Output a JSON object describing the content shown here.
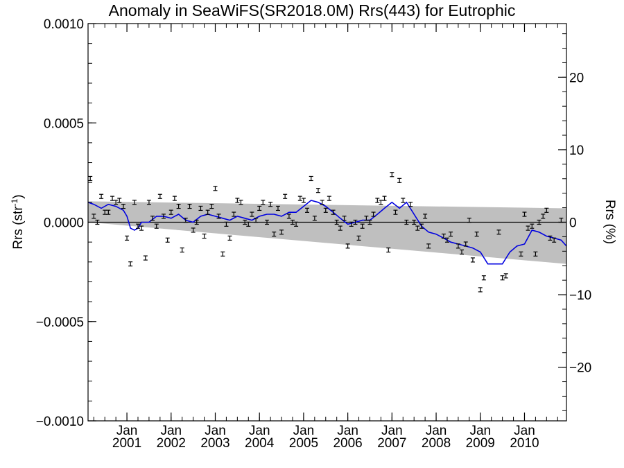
{
  "chart_data": {
    "type": "scatter",
    "title": "Anomaly in SeaWiFS(SR2018.0M) Rrs(443) for Eutrophic",
    "ylabel": "Rrs (str",
    "ylabel_sup": "-1",
    "ylabel_close": ")",
    "y2label": "Rrs (%)",
    "ylim": [
      -0.001,
      0.001
    ],
    "y2lim": [
      -27.4,
      27.4
    ],
    "xlim": [
      2000.12,
      2010.95
    ],
    "y_ticks": [
      {
        "v": -0.001,
        "label": "−0.0010"
      },
      {
        "v": -0.0005,
        "label": "−0.0005"
      },
      {
        "v": 0.0,
        "label": "0.0000"
      },
      {
        "v": 0.0005,
        "label": "0.0005"
      },
      {
        "v": 0.001,
        "label": "0.0010"
      }
    ],
    "y2_ticks": [
      {
        "v": -20,
        "label": "−20"
      },
      {
        "v": -10,
        "label": "−10"
      },
      {
        "v": 0,
        "label": "0"
      },
      {
        "v": 10,
        "label": "10"
      },
      {
        "v": 20,
        "label": "20"
      }
    ],
    "x_ticks": [
      {
        "v": 2001.0,
        "month": "Jan",
        "year": "2001"
      },
      {
        "v": 2002.0,
        "month": "Jan",
        "year": "2002"
      },
      {
        "v": 2003.0,
        "month": "Jan",
        "year": "2003"
      },
      {
        "v": 2004.0,
        "month": "Jan",
        "year": "2004"
      },
      {
        "v": 2005.0,
        "month": "Jan",
        "year": "2005"
      },
      {
        "v": 2006.0,
        "month": "Jan",
        "year": "2006"
      },
      {
        "v": 2007.0,
        "month": "Jan",
        "year": "2007"
      },
      {
        "v": 2008.0,
        "month": "Jan",
        "year": "2008"
      },
      {
        "v": 2009.0,
        "month": "Jan",
        "year": "2009"
      },
      {
        "v": 2010.0,
        "month": "Jan",
        "year": "2010"
      }
    ],
    "band": {
      "x": [
        2000.12,
        2010.95
      ],
      "upper": [
        0.000105,
        7e-05
      ],
      "lower": [
        0.0,
        -0.00021
      ]
    },
    "zero_line": 0.0,
    "points": [
      {
        "x": 2000.17,
        "y": 0.00022
      },
      {
        "x": 2000.25,
        "y": 3e-05
      },
      {
        "x": 2000.33,
        "y": 0.0
      },
      {
        "x": 2000.42,
        "y": 0.00013
      },
      {
        "x": 2000.5,
        "y": 5e-05
      },
      {
        "x": 2000.58,
        "y": 5e-05
      },
      {
        "x": 2000.67,
        "y": 0.00012
      },
      {
        "x": 2000.75,
        "y": 0.0001
      },
      {
        "x": 2000.83,
        "y": 0.00011
      },
      {
        "x": 2000.92,
        "y": 8e-05
      },
      {
        "x": 2001.0,
        "y": -8e-05
      },
      {
        "x": 2001.08,
        "y": -0.00021
      },
      {
        "x": 2001.17,
        "y": 0.0001
      },
      {
        "x": 2001.25,
        "y": -2e-05
      },
      {
        "x": 2001.33,
        "y": -3e-05
      },
      {
        "x": 2001.42,
        "y": -0.00018
      },
      {
        "x": 2001.5,
        "y": 0.0001
      },
      {
        "x": 2001.58,
        "y": 2e-05
      },
      {
        "x": 2001.67,
        "y": -2e-05
      },
      {
        "x": 2001.75,
        "y": 0.00013
      },
      {
        "x": 2001.83,
        "y": 3e-05
      },
      {
        "x": 2001.92,
        "y": -9e-05
      },
      {
        "x": 2002.0,
        "y": 5e-05
      },
      {
        "x": 2002.08,
        "y": 0.00012
      },
      {
        "x": 2002.17,
        "y": 8e-05
      },
      {
        "x": 2002.25,
        "y": -0.00014
      },
      {
        "x": 2002.33,
        "y": 1e-05
      },
      {
        "x": 2002.42,
        "y": 8e-05
      },
      {
        "x": 2002.5,
        "y": -4e-05
      },
      {
        "x": 2002.58,
        "y": 0.0
      },
      {
        "x": 2002.67,
        "y": 7e-05
      },
      {
        "x": 2002.75,
        "y": -7e-05
      },
      {
        "x": 2002.83,
        "y": 5e-05
      },
      {
        "x": 2002.92,
        "y": 8e-05
      },
      {
        "x": 2003.0,
        "y": 0.00017
      },
      {
        "x": 2003.08,
        "y": 3e-05
      },
      {
        "x": 2003.17,
        "y": -0.00016
      },
      {
        "x": 2003.25,
        "y": -1e-05
      },
      {
        "x": 2003.33,
        "y": -8e-05
      },
      {
        "x": 2003.42,
        "y": 4e-05
      },
      {
        "x": 2003.5,
        "y": 0.00011
      },
      {
        "x": 2003.58,
        "y": 0.0001
      },
      {
        "x": 2003.67,
        "y": 0.0
      },
      {
        "x": 2003.75,
        "y": -1e-05
      },
      {
        "x": 2003.83,
        "y": 4e-05
      },
      {
        "x": 2003.92,
        "y": 1e-05
      },
      {
        "x": 2004.0,
        "y": 7e-05
      },
      {
        "x": 2004.08,
        "y": 0.0001
      },
      {
        "x": 2004.17,
        "y": 0.0
      },
      {
        "x": 2004.25,
        "y": 9e-05
      },
      {
        "x": 2004.33,
        "y": -6e-05
      },
      {
        "x": 2004.42,
        "y": 7e-05
      },
      {
        "x": 2004.5,
        "y": -5e-05
      },
      {
        "x": 2004.58,
        "y": 0.00013
      },
      {
        "x": 2004.67,
        "y": 3e-05
      },
      {
        "x": 2004.75,
        "y": 0.0
      },
      {
        "x": 2004.83,
        "y": -1e-05
      },
      {
        "x": 2004.92,
        "y": 0.00012
      },
      {
        "x": 2005.0,
        "y": 0.00011
      },
      {
        "x": 2005.08,
        "y": 6e-05
      },
      {
        "x": 2005.17,
        "y": 0.00022
      },
      {
        "x": 2005.25,
        "y": 2e-05
      },
      {
        "x": 2005.33,
        "y": 0.00016
      },
      {
        "x": 2005.42,
        "y": 0.0001
      },
      {
        "x": 2005.5,
        "y": 6e-05
      },
      {
        "x": 2005.58,
        "y": 0.00012
      },
      {
        "x": 2005.67,
        "y": 5e-05
      },
      {
        "x": 2005.75,
        "y": 0.0
      },
      {
        "x": 2005.83,
        "y": -3e-05
      },
      {
        "x": 2005.92,
        "y": 2e-05
      },
      {
        "x": 2006.0,
        "y": -0.00012
      },
      {
        "x": 2006.08,
        "y": -1e-05
      },
      {
        "x": 2006.17,
        "y": 0.0
      },
      {
        "x": 2006.25,
        "y": -8e-05
      },
      {
        "x": 2006.33,
        "y": -2e-05
      },
      {
        "x": 2006.42,
        "y": 2e-05
      },
      {
        "x": 2006.5,
        "y": 0.0
      },
      {
        "x": 2006.58,
        "y": 4e-05
      },
      {
        "x": 2006.67,
        "y": 0.00011
      },
      {
        "x": 2006.75,
        "y": 0.0001
      },
      {
        "x": 2006.83,
        "y": 0.00012
      },
      {
        "x": 2006.92,
        "y": -0.00014
      },
      {
        "x": 2007.0,
        "y": 0.00024
      },
      {
        "x": 2007.08,
        "y": 5e-05
      },
      {
        "x": 2007.17,
        "y": 0.00021
      },
      {
        "x": 2007.25,
        "y": 0.00011
      },
      {
        "x": 2007.33,
        "y": 0.0
      },
      {
        "x": 2007.42,
        "y": 9e-05
      },
      {
        "x": 2007.5,
        "y": 0.0
      },
      {
        "x": 2007.58,
        "y": -3e-05
      },
      {
        "x": 2007.67,
        "y": -2e-05
      },
      {
        "x": 2007.75,
        "y": 3e-05
      },
      {
        "x": 2007.83,
        "y": -0.00012
      },
      {
        "x": 2008.17,
        "y": -7e-05
      },
      {
        "x": 2008.25,
        "y": -9e-05
      },
      {
        "x": 2008.33,
        "y": -6e-05
      },
      {
        "x": 2008.5,
        "y": -0.00012
      },
      {
        "x": 2008.58,
        "y": -0.00015
      },
      {
        "x": 2008.67,
        "y": -0.00011
      },
      {
        "x": 2008.75,
        "y": 1e-05
      },
      {
        "x": 2008.83,
        "y": -0.00019
      },
      {
        "x": 2008.92,
        "y": -6e-05
      },
      {
        "x": 2009.0,
        "y": -0.00034
      },
      {
        "x": 2009.08,
        "y": -0.00028
      },
      {
        "x": 2009.42,
        "y": -5e-05
      },
      {
        "x": 2009.5,
        "y": -0.00028
      },
      {
        "x": 2009.58,
        "y": -0.00027
      },
      {
        "x": 2009.92,
        "y": -0.00016
      },
      {
        "x": 2010.0,
        "y": 4e-05
      },
      {
        "x": 2010.08,
        "y": -3e-05
      },
      {
        "x": 2010.17,
        "y": -2e-05
      },
      {
        "x": 2010.25,
        "y": -0.00016
      },
      {
        "x": 2010.33,
        "y": 0.0
      },
      {
        "x": 2010.42,
        "y": 3e-05
      },
      {
        "x": 2010.5,
        "y": 6e-05
      },
      {
        "x": 2010.58,
        "y": -8e-05
      },
      {
        "x": 2010.67,
        "y": -9e-05
      },
      {
        "x": 2010.83,
        "y": 1e-05
      }
    ],
    "running_mean": {
      "x": [
        2000.12,
        2000.25,
        2000.42,
        2000.58,
        2000.75,
        2000.92,
        2001.0,
        2001.08,
        2001.17,
        2001.25,
        2001.33,
        2001.5,
        2001.67,
        2001.83,
        2002.0,
        2002.17,
        2002.33,
        2002.5,
        2002.67,
        2002.83,
        2003.0,
        2003.17,
        2003.33,
        2003.5,
        2003.67,
        2003.83,
        2004.0,
        2004.17,
        2004.33,
        2004.5,
        2004.67,
        2004.83,
        2005.0,
        2005.17,
        2005.33,
        2005.5,
        2005.67,
        2005.83,
        2006.0,
        2006.17,
        2006.33,
        2006.5,
        2006.67,
        2006.83,
        2007.0,
        2007.17,
        2007.33,
        2007.5,
        2007.67,
        2007.83,
        2008.0,
        2008.17,
        2008.33,
        2008.5,
        2008.67,
        2008.83,
        2009.0,
        2009.17,
        2009.33,
        2009.5,
        2009.67,
        2009.83,
        2010.0,
        2010.17,
        2010.33,
        2010.5,
        2010.67,
        2010.83,
        2010.95
      ],
      "y": [
        0.0001,
        9e-05,
        7e-05,
        9e-05,
        8e-05,
        6e-05,
        3e-05,
        -3e-05,
        -4e-05,
        -3e-05,
        0.0,
        0.0,
        3e-05,
        3e-05,
        2e-05,
        4e-05,
        1e-05,
        0.0,
        3e-05,
        4e-05,
        3e-05,
        2e-05,
        1e-05,
        3e-05,
        2e-05,
        1e-05,
        3e-05,
        4e-05,
        4e-05,
        3e-05,
        5e-05,
        5e-05,
        8e-05,
        0.00011,
        0.0001,
        8e-05,
        5e-05,
        2e-05,
        -1e-05,
        0.0,
        1e-05,
        1e-05,
        4e-05,
        7e-05,
        0.0001,
        7e-05,
        0.0001,
        4e-05,
        -2e-05,
        -5e-05,
        -6e-05,
        -8e-05,
        -0.0001,
        -0.00011,
        -0.00012,
        -0.00013,
        -0.00015,
        -0.00021,
        -0.00021,
        -0.00021,
        -0.00015,
        -0.00012,
        -0.00011,
        -4e-05,
        -5e-05,
        -7e-05,
        -8e-05,
        -9e-05,
        -0.00012
      ]
    },
    "colors": {
      "band": "#bfbfbf",
      "line": "#0000e0",
      "points": "#000000"
    },
    "grid": false
  }
}
